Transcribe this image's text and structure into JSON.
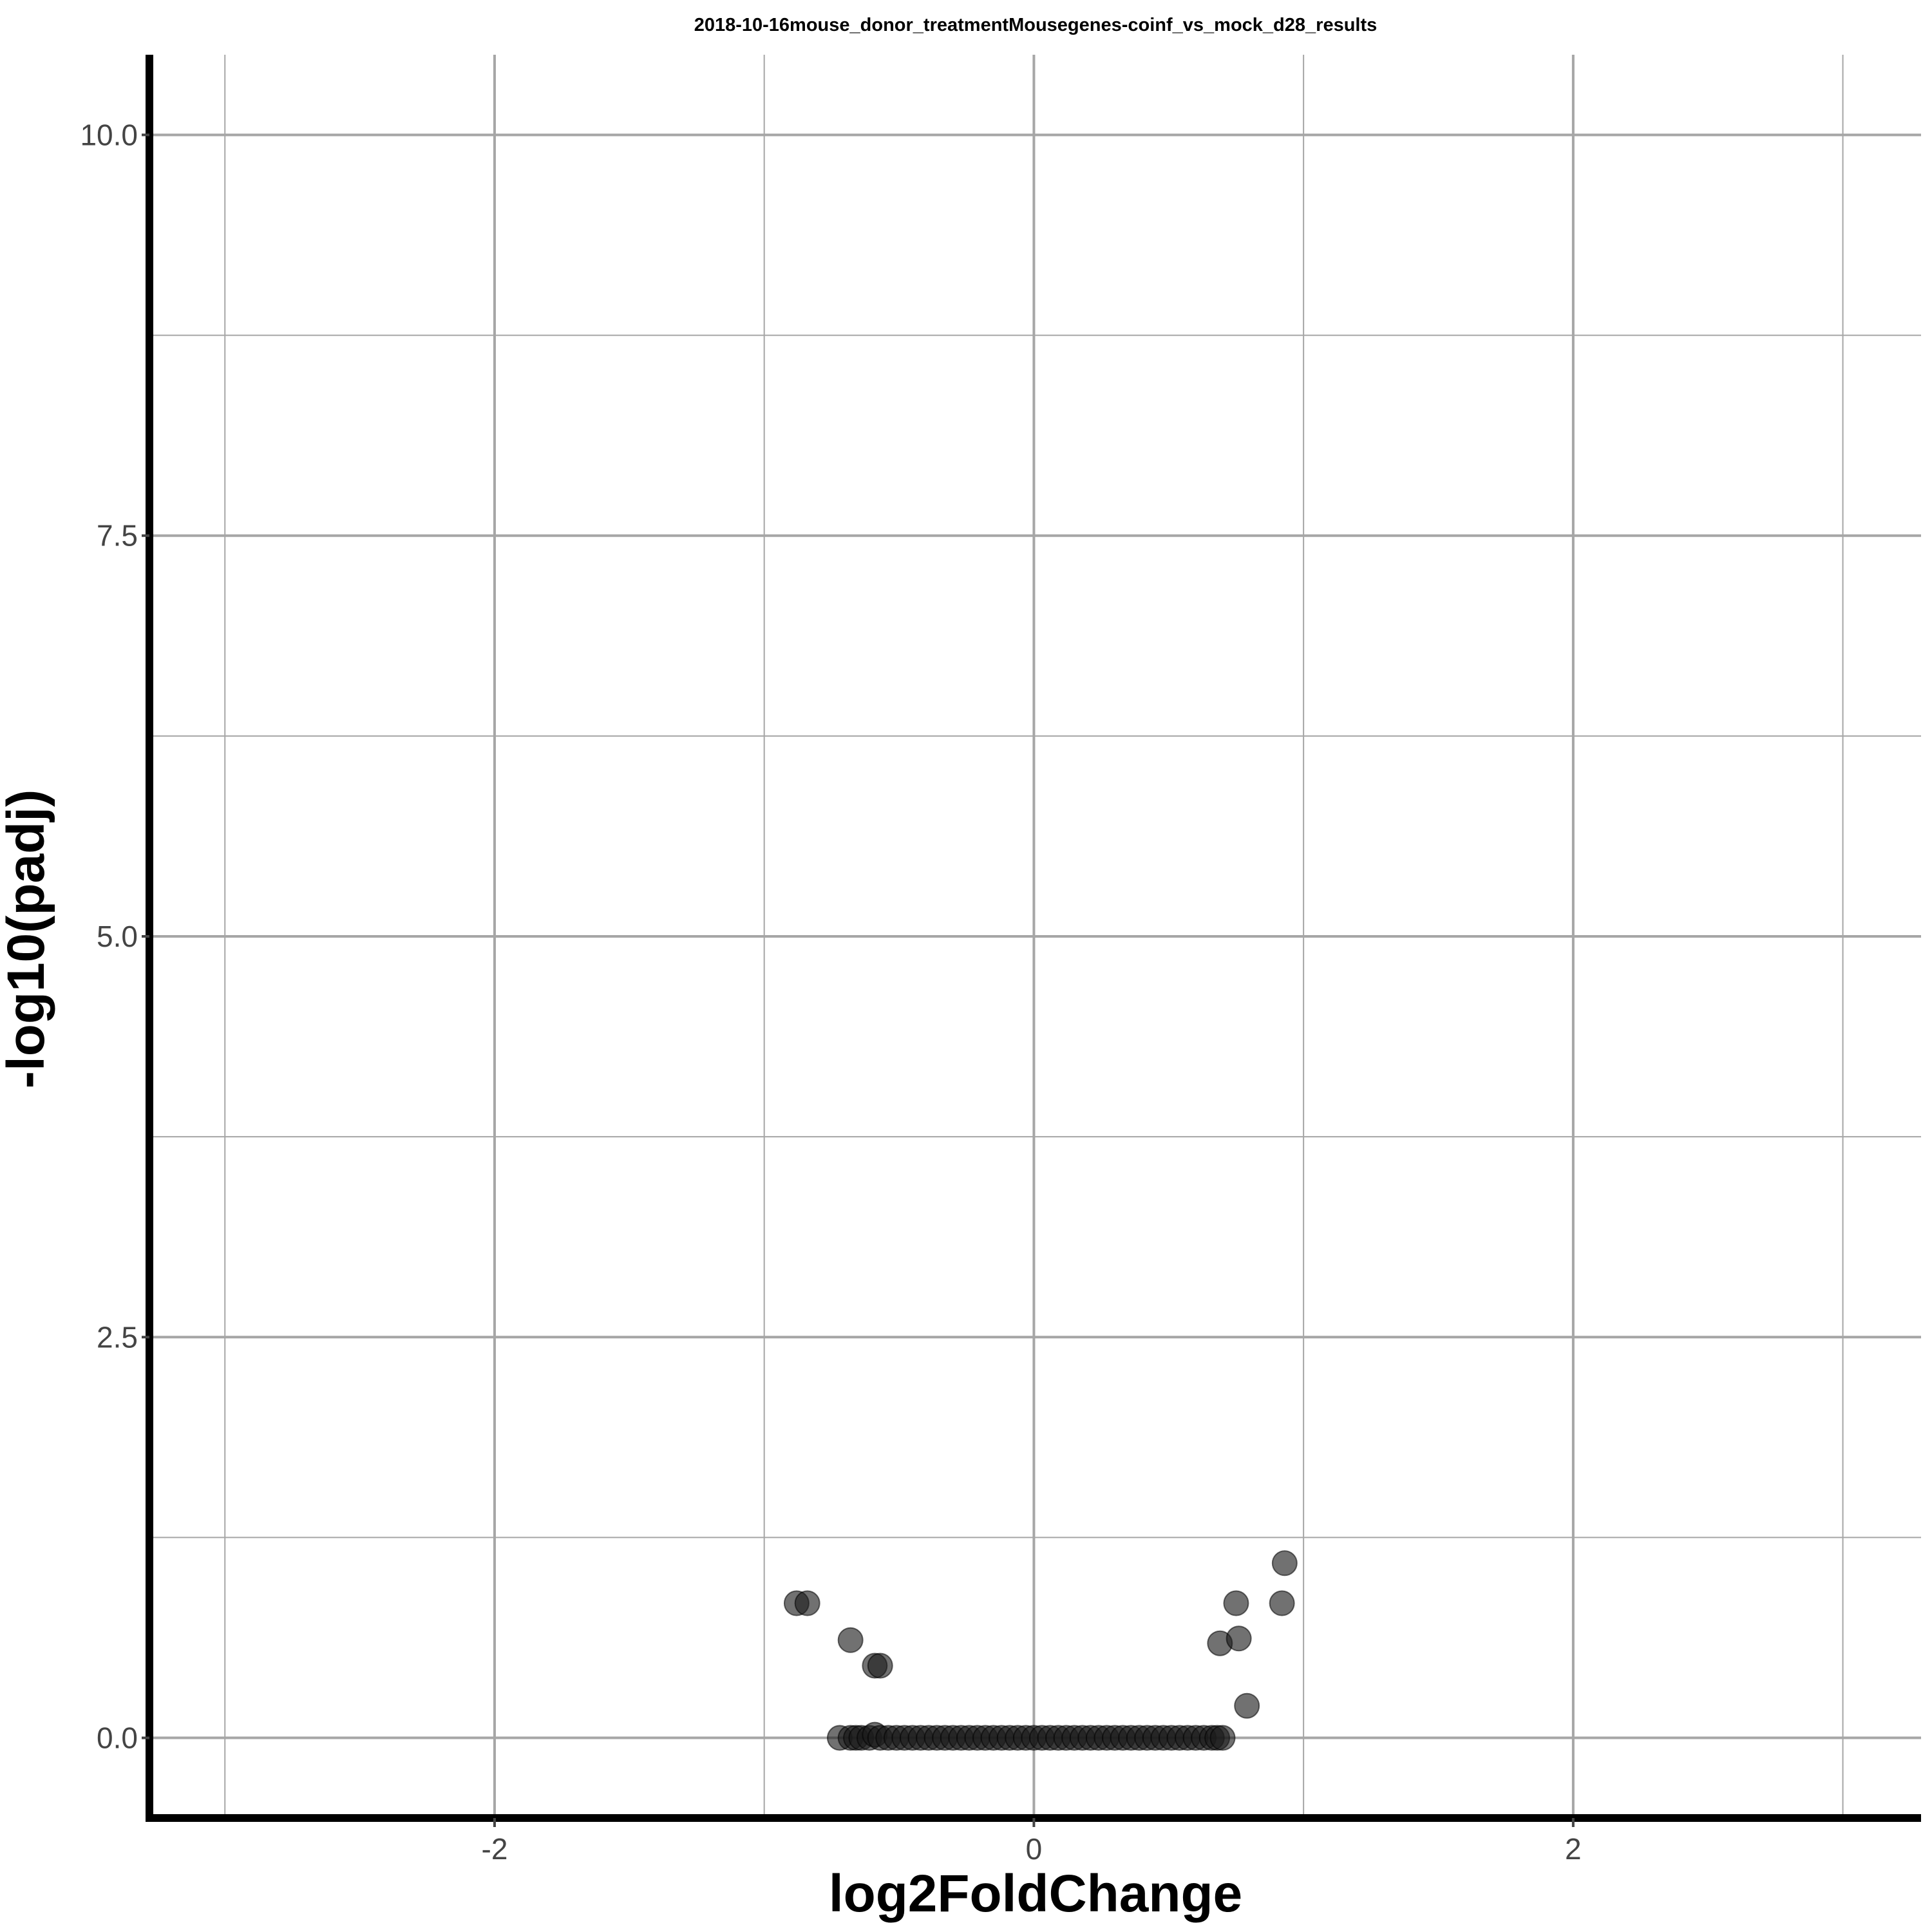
{
  "chart_data": {
    "type": "scatter",
    "title": "2018-10-16mouse_donor_treatmentMousegenes-coinf_vs_mock_d28_results",
    "xlabel": "log2FoldChange",
    "ylabel": "-log10(padj)",
    "xlim": [
      -3.28,
      3.29
    ],
    "ylim": [
      -0.5,
      10.5
    ],
    "x_ticks": [
      -2,
      0,
      2
    ],
    "x_tick_labels": [
      "-2",
      "0",
      "2"
    ],
    "y_ticks": [
      0,
      2.5,
      5,
      7.5,
      10
    ],
    "y_tick_labels": [
      "0.0",
      "2.5",
      "5.0",
      "7.5",
      "10.0"
    ],
    "x_minor_ticks": [
      -3,
      -1,
      1,
      3
    ],
    "y_minor_ticks": [
      1.25,
      3.75,
      6.25,
      8.75
    ],
    "grid": true,
    "legend": "none",
    "point_color": "#1a1a1a",
    "series": [
      {
        "points": [
          {
            "x": -0.88,
            "y": 0.84
          },
          {
            "x": -0.84,
            "y": 0.84
          },
          {
            "x": -0.68,
            "y": 0.61
          },
          {
            "x": -0.59,
            "y": 0.45
          },
          {
            "x": -0.57,
            "y": 0.45
          },
          {
            "x": 0.69,
            "y": 0.59
          },
          {
            "x": 0.75,
            "y": 0.84
          },
          {
            "x": 0.76,
            "y": 0.62
          },
          {
            "x": 0.79,
            "y": 0.2
          },
          {
            "x": 0.92,
            "y": 0.84
          },
          {
            "x": 0.93,
            "y": 1.09
          },
          {
            "x": -0.72,
            "y": 0.0
          },
          {
            "x": -0.68,
            "y": 0.0
          },
          {
            "x": -0.66,
            "y": 0.0
          },
          {
            "x": -0.64,
            "y": 0.0
          },
          {
            "x": -0.61,
            "y": 0.0
          },
          {
            "x": -0.59,
            "y": 0.02
          },
          {
            "x": -0.57,
            "y": 0.0
          },
          {
            "x": -0.54,
            "y": 0.0
          },
          {
            "x": -0.51,
            "y": 0.0
          },
          {
            "x": -0.48,
            "y": 0.0
          },
          {
            "x": -0.45,
            "y": 0.0
          },
          {
            "x": -0.42,
            "y": 0.0
          },
          {
            "x": -0.39,
            "y": 0.0
          },
          {
            "x": -0.36,
            "y": 0.0
          },
          {
            "x": -0.33,
            "y": 0.0
          },
          {
            "x": -0.3,
            "y": 0.0
          },
          {
            "x": -0.27,
            "y": 0.0
          },
          {
            "x": -0.24,
            "y": 0.0
          },
          {
            "x": -0.21,
            "y": 0.0
          },
          {
            "x": -0.18,
            "y": 0.0
          },
          {
            "x": -0.15,
            "y": 0.0
          },
          {
            "x": -0.12,
            "y": 0.0
          },
          {
            "x": -0.09,
            "y": 0.0
          },
          {
            "x": -0.06,
            "y": 0.0
          },
          {
            "x": -0.03,
            "y": 0.0
          },
          {
            "x": 0.0,
            "y": 0.0
          },
          {
            "x": 0.03,
            "y": 0.0
          },
          {
            "x": 0.06,
            "y": 0.0
          },
          {
            "x": 0.09,
            "y": 0.0
          },
          {
            "x": 0.12,
            "y": 0.0
          },
          {
            "x": 0.15,
            "y": 0.0
          },
          {
            "x": 0.18,
            "y": 0.0
          },
          {
            "x": 0.21,
            "y": 0.0
          },
          {
            "x": 0.24,
            "y": 0.0
          },
          {
            "x": 0.27,
            "y": 0.0
          },
          {
            "x": 0.3,
            "y": 0.0
          },
          {
            "x": 0.33,
            "y": 0.0
          },
          {
            "x": 0.36,
            "y": 0.0
          },
          {
            "x": 0.39,
            "y": 0.0
          },
          {
            "x": 0.42,
            "y": 0.0
          },
          {
            "x": 0.45,
            "y": 0.0
          },
          {
            "x": 0.48,
            "y": 0.0
          },
          {
            "x": 0.51,
            "y": 0.0
          },
          {
            "x": 0.54,
            "y": 0.0
          },
          {
            "x": 0.57,
            "y": 0.0
          },
          {
            "x": 0.6,
            "y": 0.0
          },
          {
            "x": 0.63,
            "y": 0.0
          },
          {
            "x": 0.66,
            "y": 0.0
          },
          {
            "x": 0.68,
            "y": 0.0
          },
          {
            "x": 0.7,
            "y": 0.0
          }
        ]
      }
    ]
  }
}
